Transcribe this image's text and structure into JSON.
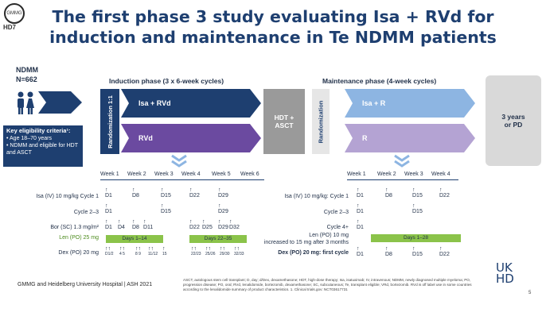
{
  "title_line1": "The first phase 3 study evaluating Isa + RVd for",
  "title_line2": "induction and maintenance in Te NDMM patients",
  "logo_text": "HD7",
  "population": {
    "label": "NDMM",
    "n": "N=662"
  },
  "eligibility": {
    "heading": "Key eligibility criteria¹:",
    "items": [
      "Age 18–70 years",
      "NDMM and eligible for HDT and ASCT"
    ]
  },
  "induction": {
    "heading": "Induction phase (3 x 6-week cycles)",
    "randomization": "Randomization 1:1",
    "arm1": "Isa + RVd",
    "arm2": "RVd",
    "weeks": [
      "Week 1",
      "Week 2",
      "Week 3",
      "Week 4",
      "Week 5",
      "Week 6"
    ],
    "rows": {
      "isa_label": "Isa (IV) 10 mg/kg Cycle 1",
      "isa_days": [
        "D1",
        "D8",
        "D15",
        "D22",
        "D29"
      ],
      "cycle23_label": "Cycle 2–3",
      "cycle23_days": [
        "D1",
        "D15",
        "D29"
      ],
      "bor_label": "Bor (SC) 1.3 mg/m²",
      "bor_days": [
        "D1",
        "D4",
        "D8",
        "D11",
        "D22",
        "D25",
        "D29",
        "D32"
      ],
      "len_label": "Len (PO) 25 mg",
      "len_bars": [
        "Days 1–14",
        "Days 22–35"
      ],
      "dex_label": "Dex (PO) 20 mg",
      "dex_days": [
        "D1/2",
        "4 5",
        "8 9",
        "11/12",
        "15",
        "22/23",
        "25/26",
        "29/30",
        "32/33"
      ]
    }
  },
  "hdt": "HDT + ASCT",
  "maintenance": {
    "heading": "Maintenance phase (4-week cycles)",
    "randomization": "Randomization",
    "arm1": "Isa + R",
    "arm2": "R",
    "weeks": [
      "Week 1",
      "Week 2",
      "Week 3",
      "Week 4"
    ],
    "rows": {
      "isa_label": "Isa (IV) 10 mg/kg: Cycle 1",
      "isa_days": [
        "D1",
        "D8",
        "D15",
        "D22"
      ],
      "cycle23_label": "Cycle 2–3",
      "cycle23_days": [
        "D1",
        "D15"
      ],
      "cycle4_label": "Cycle 4+",
      "cycle4_days": [
        "D1"
      ],
      "len_label": "Len (PO) 10 mg",
      "len_label2": "increased to 15 mg after 3 months",
      "len_bar": "Days 1–28",
      "dex_label": "Dex (PO) 20 mg: first cycle",
      "dex_days": [
        "D1",
        "D8",
        "D15",
        "D22"
      ]
    }
  },
  "end_box": "3 years or PD",
  "footer": "GMMG and Heidelberg University Hospital | ASH 2021",
  "footnote": "ASCT, autologous stem cell transplant; D, day; d/Dex, dexamethasone; HDT, high-dose therapy; Isa, isatuximab; IV, intravenous; NDMM, newly diagnosed multiple myeloma; PO, progression disease; PO, oral; RVd, lenalidomide, bortezomib, dexamethasone; SC, subcutaneous; Te, transplant eligible; VRd, bortezomib. RVd is off label use in some countries according to the lenalidomide summary of product characteristics. 1. Clinical trials.gov: NCT03617731",
  "ukhd_logo": {
    "line1": "UK",
    "line2": "HD"
  },
  "page_number": "5",
  "colors": {
    "navy": "#1e3f70",
    "light_blue": "#8db5e2",
    "purple": "#6b4aa0",
    "light_purple": "#b4a3d3",
    "gray": "#a8a8a8",
    "green": "#8bc34a"
  }
}
